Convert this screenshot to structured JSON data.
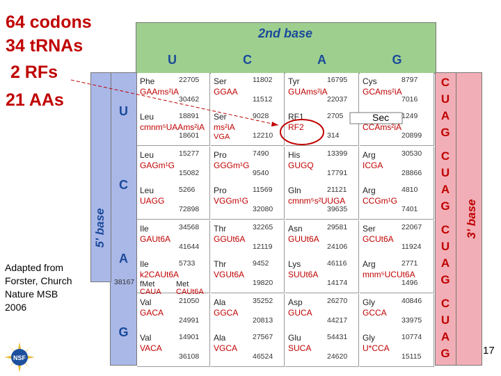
{
  "stats": [
    "64 codons",
    "34 tRNAs",
    " 2 RFs",
    "21 AAs"
  ],
  "credit": [
    "Adapted from",
    "Forster, Church",
    "Nature MSB",
    "2006"
  ],
  "second_base_title": "2nd base",
  "second_base": [
    "U",
    "C",
    "A",
    "G"
  ],
  "first_base_title": "5' base",
  "first_base": [
    "U",
    "C",
    "A",
    "G"
  ],
  "third_base_title": "3' base",
  "third_base": [
    "C",
    "U",
    "A",
    "G"
  ],
  "page_number": "17",
  "sec_label": "Sec",
  "colors": {
    "green": "#9ecf8f",
    "blue": "#aab8e8",
    "pink": "#f2aeb6",
    "red": "#c00000",
    "blue_text": "#1a4a9a"
  },
  "cells": {
    "UU": {
      "aa1": "Phe",
      "codon1": "GAAms²iA",
      "aa2": "Leu",
      "codon2": "cmnm⁵UAAms²iA",
      "nums": [
        "22705",
        "30462",
        "18891",
        "18601"
      ]
    },
    "UC": {
      "aa1": "Ser",
      "codon1": "GGAA",
      "aa2": "Ser",
      "codon2": "ms²iA",
      "codon3": "VGA",
      "nums": [
        "11802",
        "11512",
        "9028",
        "12210"
      ]
    },
    "UA": {
      "aa1": "Tyr",
      "codon1": "GUAms²iA",
      "aa2": "RF1",
      "codon2": "RF2",
      "nums": [
        "16795",
        "22037",
        "2705",
        "314"
      ]
    },
    "UG": {
      "aa1": "Cys",
      "codon1": "GCAms²iA",
      "aa2": "Trp",
      "codon2": "CCAms²iA",
      "nums": [
        "8797",
        "7016",
        "1249",
        "20899"
      ]
    },
    "CU": {
      "aa1": "Leu",
      "codon1": "GAGm¹G",
      "aa2": "Leu",
      "codon2": "UAGG",
      "nums": [
        "15277",
        "15082",
        "5266",
        "72898"
      ]
    },
    "CC": {
      "aa1": "Pro",
      "codon1": "GGGm¹G",
      "aa2": "Pro",
      "codon2": "VGGm¹G",
      "nums": [
        "7490",
        "9540",
        "11569",
        "32080"
      ]
    },
    "CA": {
      "aa1": "His",
      "codon1": "GUGQ",
      "aa2": "Gln",
      "codon2": "cmnm⁵s²UUGA",
      "nums": [
        "13399",
        "17791",
        "21121",
        "39635"
      ]
    },
    "CG": {
      "aa1": "Arg",
      "codon1": "ICGA",
      "aa2": "Arg",
      "codon2": "CCGm¹G",
      "nums": [
        "30530",
        "28866",
        "4810",
        "7401"
      ]
    },
    "AU": {
      "aa1": "Ile",
      "codon1": "GAUt6A",
      "aa2": "Ile",
      "codon2": "k2CAUt6A",
      "aa3": "fMet",
      "codon3": "CAUA",
      "aa4": "Met",
      "codon4": "CAUt6A",
      "nums": [
        "34568",
        "41644",
        "5733",
        "38167"
      ]
    },
    "AC": {
      "aa1": "Thr",
      "codon1": "GGUt6A",
      "aa2": "Thr",
      "codon2": "VGUt6A",
      "nums": [
        "32265",
        "12119",
        "9452",
        "19820"
      ]
    },
    "AA": {
      "aa1": "Asn",
      "codon1": "GUUt6A",
      "aa2": "Lys",
      "codon2": "SUUt6A",
      "nums": [
        "29581",
        "24106",
        "46116",
        "14174"
      ]
    },
    "AG": {
      "aa1": "Ser",
      "codon1": "GCUt6A",
      "aa2": "Arg",
      "codon2": "mnm⁵UCUt6A",
      "nums": [
        "22067",
        "11924",
        "2771",
        "1496"
      ]
    },
    "GU": {
      "aa1": "Val",
      "codon1": "GACA",
      "aa2": "Val",
      "codon2": "VACA",
      "nums": [
        "21050",
        "24991",
        "14901",
        "36108"
      ]
    },
    "GC": {
      "aa1": "Ala",
      "codon1": "GGCA",
      "aa2": "Ala",
      "codon2": "VGCA",
      "nums": [
        "35252",
        "20813",
        "27567",
        "46524"
      ]
    },
    "GA": {
      "aa1": "Asp",
      "codon1": "GUCA",
      "aa2": "Glu",
      "codon2": "SUCA",
      "nums": [
        "26270",
        "44217",
        "54431",
        "24620"
      ]
    },
    "GG": {
      "aa1": "Gly",
      "codon1": "GCCA",
      "aa2": "Gly",
      "codon2": "U*CCA",
      "nums": [
        "40846",
        "33975",
        "10774",
        "15115"
      ]
    }
  }
}
